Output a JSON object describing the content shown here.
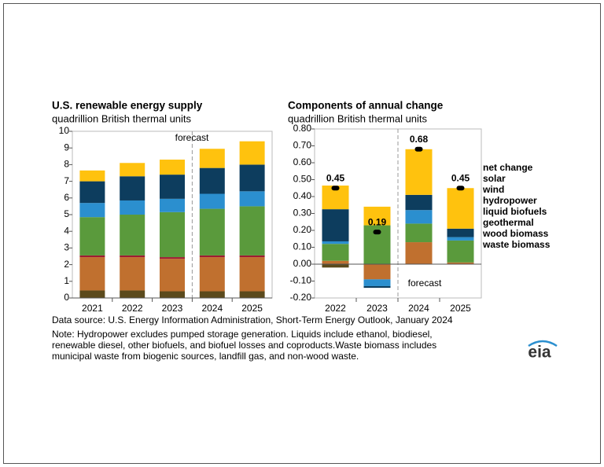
{
  "chart_data": [
    {
      "type": "bar",
      "stacked": true,
      "title": "U.S. renewable energy supply",
      "subtitle": "quadrillion British thermal units",
      "annotation": "forecast",
      "categories": [
        "2021",
        "2022",
        "2023",
        "2024",
        "2025"
      ],
      "ylim": [
        0,
        10
      ],
      "yticks": [
        0,
        1,
        2,
        3,
        4,
        5,
        6,
        7,
        8,
        9,
        10
      ],
      "series": [
        {
          "color": "#ffc20e",
          "values": [
            0.65,
            0.8,
            0.9,
            1.15,
            1.4
          ]
        },
        {
          "color": "#0d3d5e",
          "values": [
            1.3,
            1.45,
            1.45,
            1.55,
            1.6
          ]
        },
        {
          "color": "#2b8fcf",
          "values": [
            0.85,
            0.85,
            0.8,
            0.9,
            0.9
          ]
        },
        {
          "color": "#5a9a3c",
          "values": [
            2.3,
            2.45,
            2.7,
            2.8,
            2.95
          ]
        },
        {
          "color": "#9e1b32",
          "values": [
            0.1,
            0.1,
            0.1,
            0.1,
            0.1
          ]
        },
        {
          "color": "#c0702f",
          "values": [
            2.0,
            2.0,
            1.95,
            2.05,
            2.05
          ]
        },
        {
          "color": "#5b4a1c",
          "values": [
            0.45,
            0.45,
            0.4,
            0.4,
            0.4
          ]
        }
      ]
    },
    {
      "type": "bar",
      "stacked": true,
      "title": "Components of annual change",
      "subtitle": "quadrillion British thermal units",
      "annotation": "forecast",
      "categories": [
        "2022",
        "2023",
        "2024",
        "2025"
      ],
      "ylim": [
        -0.2,
        0.8
      ],
      "yticks": [
        {
          "value": 0.8,
          "label": "0.80"
        },
        {
          "value": 0.7,
          "label": "0.70"
        },
        {
          "value": 0.6,
          "label": "0.60"
        },
        {
          "value": 0.5,
          "label": "0.50"
        },
        {
          "value": 0.4,
          "label": "0.40"
        },
        {
          "value": 0.3,
          "label": "0.30"
        },
        {
          "value": 0.2,
          "label": "0.20"
        },
        {
          "value": 0.1,
          "label": "0.10"
        },
        {
          "value": 0,
          "label": "0.00"
        },
        {
          "value": -0.1,
          "label": "-0.10"
        },
        {
          "value": -0.2,
          "label": "-0.20"
        }
      ],
      "net_change": {
        "name": "net change",
        "color": "#000000",
        "values": [
          0.45,
          0.19,
          0.68,
          0.45
        ]
      },
      "series": [
        {
          "name": "solar",
          "color": "#ffc20e",
          "values": [
            0.14,
            0.11,
            0.27,
            0.24
          ]
        },
        {
          "name": "wind",
          "color": "#0d3d5e",
          "values": [
            0.19,
            -0.01,
            0.09,
            0.05
          ]
        },
        {
          "name": "hydropower",
          "color": "#2b8fcf",
          "values": [
            0.015,
            -0.04,
            0.08,
            0.02
          ]
        },
        {
          "name": "liquid biofuels",
          "color": "#5a9a3c",
          "values": [
            0.1,
            0.23,
            0.11,
            0.13
          ]
        },
        {
          "name": "geothermal",
          "color": "#9e1b32",
          "values": [
            0,
            0,
            0,
            0
          ]
        },
        {
          "name": "wood biomass",
          "color": "#c0702f",
          "values": [
            0.02,
            -0.09,
            0.13,
            0.01
          ]
        },
        {
          "name": "waste biomass",
          "color": "#5b4a1c",
          "values": [
            -0.02,
            0,
            0,
            0
          ]
        }
      ]
    }
  ],
  "source": "Data source: U.S. Energy Information Administration, Short-Term Energy Outlook, January 2024",
  "note": [
    "Note: Hydropower excludes pumped storage generation. Liquids include ethanol, biodiesel,",
    "renewable diesel, other biofuels, and biofuel losses and coproducts.Waste biomass includes",
    "municipal waste from biogenic sources, landfill gas, and non-wood waste."
  ],
  "logo": "eia"
}
